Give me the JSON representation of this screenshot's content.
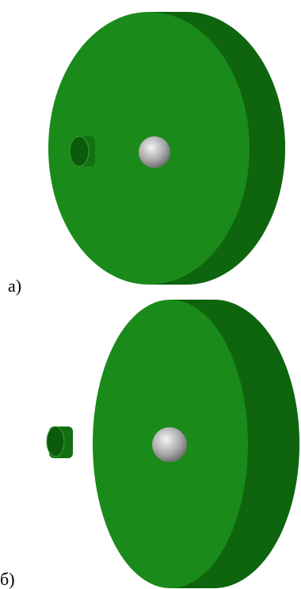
{
  "panels": [
    {
      "label": "a)"
    },
    {
      "label": "б)"
    }
  ]
}
